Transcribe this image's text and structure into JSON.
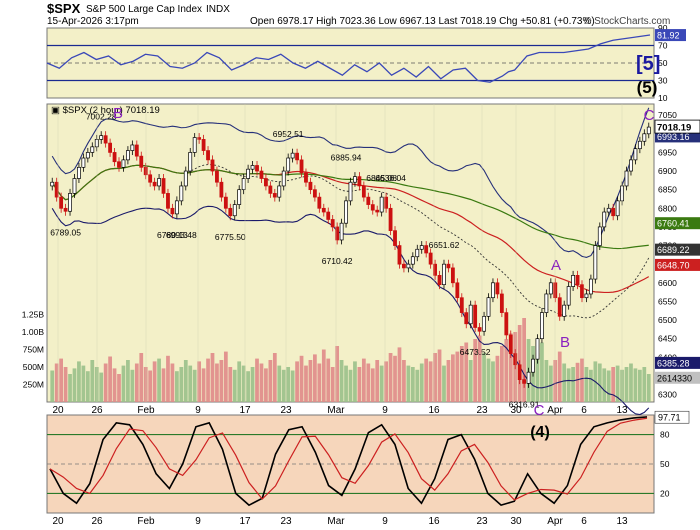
{
  "header": {
    "symbol": "$SPX",
    "name": "S&P 500 Large Cap Index",
    "exchange": "INDX",
    "datetime": "15-Apr-2026 3:17pm",
    "quote": "Open 6978.17  High 7023.36  Low 6967.13  Last 7018.19  Chg +50.81 (+0.73%)",
    "copyright": "© StockCharts.com"
  },
  "colors": {
    "panel_bg": "#f3f0c8",
    "stoch_bg": "#f6d6bb",
    "rsi_line": "#3a48b8",
    "rsi_band": "#1a2a90",
    "upper_band": "#26307a",
    "ma_red": "#cc2020",
    "ma_green": "#3a7a10",
    "lower_band": "#1a1a6a",
    "up_bar": "#000000",
    "down_bar": "#cc1111",
    "vol_red": "#e08a88",
    "vol_green": "#9ac08a",
    "label_blue": "#1a1aa0",
    "label_purple": "#8a20c0",
    "stoch_black": "#000000",
    "stoch_red": "#cc2020"
  },
  "chart_data": [
    {
      "type": "line",
      "panel": "rsi",
      "ylim": [
        10,
        90
      ],
      "ticks": [
        "90",
        "70",
        "50",
        "30",
        "10"
      ],
      "last_label": "81.92",
      "wave_label": "[5]",
      "x": [
        0,
        4,
        8,
        12,
        16,
        20,
        24,
        28,
        32,
        36,
        40,
        44,
        48,
        52,
        56,
        60,
        64,
        68,
        72,
        76,
        80,
        84,
        88,
        92,
        96,
        100,
        104,
        108,
        112,
        116,
        120,
        124,
        128,
        132,
        136,
        140,
        144,
        148,
        150,
        152,
        156,
        160,
        164,
        168,
        172,
        176,
        180,
        184,
        188,
        192,
        196
      ],
      "values": [
        50,
        44,
        56,
        62,
        54,
        58,
        48,
        52,
        60,
        58,
        46,
        44,
        50,
        62,
        56,
        42,
        48,
        56,
        54,
        60,
        50,
        44,
        52,
        44,
        36,
        48,
        40,
        50,
        36,
        44,
        34,
        46,
        32,
        42,
        44,
        30,
        28,
        35,
        40,
        42,
        58,
        62,
        62,
        62,
        64,
        66,
        72,
        76,
        78,
        80,
        82
      ]
    },
    {
      "type": "candlestick",
      "panel": "price",
      "series_label": "$SPX (2 hour) 7018.19",
      "ylim": [
        6280,
        7080
      ],
      "ticks": [
        "7050",
        "6950",
        "6900",
        "6850",
        "6800",
        "6750",
        "6700",
        "6650",
        "6600",
        "6550",
        "6500",
        "6450",
        "6400",
        "6350",
        "6300"
      ],
      "volume_ticks": [
        "1.25B",
        "1.00B",
        "750M",
        "500M",
        "250M"
      ],
      "x_labels": [
        "20",
        "26",
        "Feb",
        "9",
        "17",
        "23",
        "Mar",
        "9",
        "16",
        "23",
        "30",
        "Apr",
        "6",
        "13"
      ],
      "right_labels": {
        "upper_band": "6993.16",
        "ma_green": "6760.41",
        "lower_dotted": "6689.22",
        "ma_red": "6648.70",
        "lower_band": "6385.28",
        "volume": "2614330"
      },
      "last_price": "7018.19",
      "annotations": [
        {
          "text": "7002.28",
          "idx": 11
        },
        {
          "text": "6993.48",
          "idx": 29
        },
        {
          "text": "6952.51",
          "idx": 53
        },
        {
          "text": "6885.94",
          "idx": 66
        },
        {
          "text": "6845.08",
          "idx": 74
        },
        {
          "text": "6789.05",
          "idx": 3
        },
        {
          "text": "6780.13",
          "idx": 27
        },
        {
          "text": "6775.50",
          "idx": 40
        },
        {
          "text": "6710.42",
          "idx": 64
        },
        {
          "text": "6636.04",
          "idx": 76
        },
        {
          "text": "6651.62",
          "idx": 88
        },
        {
          "text": "6473.52",
          "idx": 95
        },
        {
          "text": "6316.91",
          "idx": 106
        }
      ],
      "wave_labels": [
        "B",
        "(5)",
        "C",
        "A",
        "B",
        "C"
      ],
      "closes": [
        6870,
        6830,
        6800,
        6792,
        6840,
        6880,
        6910,
        6935,
        6950,
        6965,
        6985,
        6995,
        6975,
        6950,
        6925,
        6910,
        6930,
        6955,
        6970,
        6940,
        6910,
        6890,
        6870,
        6860,
        6880,
        6840,
        6800,
        6785,
        6820,
        6860,
        6900,
        6950,
        6990,
        6985,
        6955,
        6930,
        6900,
        6870,
        6830,
        6800,
        6780,
        6810,
        6850,
        6880,
        6905,
        6915,
        6900,
        6880,
        6860,
        6840,
        6830,
        6860,
        6900,
        6935,
        6948,
        6930,
        6895,
        6870,
        6850,
        6830,
        6800,
        6790,
        6770,
        6750,
        6715,
        6760,
        6820,
        6870,
        6885,
        6860,
        6830,
        6810,
        6795,
        6790,
        6830,
        6800,
        6740,
        6700,
        6650,
        6640,
        6650,
        6670,
        6690,
        6700,
        6680,
        6650,
        6620,
        6595,
        6650,
        6640,
        6600,
        6560,
        6520,
        6490,
        6540,
        6480,
        6470,
        6510,
        6560,
        6600,
        6570,
        6520,
        6460,
        6410,
        6380,
        6340,
        6330,
        6360,
        6395,
        6450,
        6520,
        6570,
        6600,
        6560,
        6510,
        6540,
        6590,
        6620,
        6595,
        6560,
        6570,
        6610,
        6700,
        6750,
        6790,
        6800,
        6780,
        6820,
        6860,
        6900,
        6930,
        6960,
        6980,
        7000,
        7018
      ],
      "volumes": [
        0.45,
        0.55,
        0.62,
        0.5,
        0.4,
        0.48,
        0.58,
        0.52,
        0.44,
        0.6,
        0.5,
        0.42,
        0.55,
        0.65,
        0.48,
        0.4,
        0.52,
        0.6,
        0.46,
        0.55,
        0.7,
        0.5,
        0.45,
        0.58,
        0.62,
        0.48,
        0.66,
        0.55,
        0.44,
        0.5,
        0.6,
        0.52,
        0.46,
        0.58,
        0.48,
        0.62,
        0.7,
        0.55,
        0.6,
        0.72,
        0.5,
        0.46,
        0.58,
        0.52,
        0.44,
        0.5,
        0.62,
        0.55,
        0.48,
        0.6,
        0.7,
        0.52,
        0.46,
        0.5,
        0.45,
        0.58,
        0.66,
        0.52,
        0.6,
        0.68,
        0.55,
        0.75,
        0.62,
        0.5,
        0.8,
        0.6,
        0.52,
        0.46,
        0.58,
        0.5,
        0.62,
        0.55,
        0.48,
        0.6,
        0.52,
        0.58,
        0.7,
        0.66,
        0.78,
        0.6,
        0.52,
        0.5,
        0.46,
        0.55,
        0.62,
        0.58,
        0.7,
        0.75,
        0.52,
        0.6,
        0.68,
        0.72,
        0.8,
        0.85,
        0.6,
        0.9,
        0.95,
        0.7,
        0.62,
        0.58,
        0.66,
        0.8,
        0.9,
        0.98,
        1.0,
        1.1,
        1.2,
        0.9,
        0.8,
        0.7,
        0.85,
        0.6,
        0.52,
        0.6,
        0.72,
        0.55,
        0.48,
        0.5,
        0.56,
        0.62,
        0.5,
        0.46,
        0.58,
        0.55,
        0.48,
        0.45,
        0.5,
        0.52,
        0.46,
        0.5,
        0.55,
        0.48,
        0.46,
        0.5,
        0.4
      ]
    },
    {
      "type": "line",
      "panel": "stochastic",
      "ylim": [
        0,
        100
      ],
      "ticks": [
        "80",
        "50",
        "20"
      ],
      "last_label": "97.71",
      "wave_label": "(4)",
      "x_labels": [
        "20",
        "26",
        "Feb",
        "9",
        "17",
        "23",
        "Mar",
        "9",
        "16",
        "23",
        "30",
        "Apr",
        "6",
        "13"
      ],
      "x": [
        0,
        3,
        6,
        9,
        12,
        15,
        18,
        21,
        24,
        27,
        30,
        33,
        36,
        39,
        42,
        45,
        48,
        51,
        54,
        57,
        60,
        63,
        66,
        69,
        72,
        75,
        78,
        81,
        84,
        87,
        90,
        93,
        96,
        99,
        102,
        105,
        108,
        111,
        114,
        117,
        120,
        123,
        126,
        129,
        132,
        135
      ],
      "values": [
        45,
        20,
        10,
        30,
        75,
        92,
        90,
        70,
        40,
        25,
        50,
        88,
        92,
        65,
        20,
        8,
        15,
        60,
        85,
        88,
        62,
        28,
        18,
        45,
        82,
        90,
        70,
        25,
        10,
        35,
        75,
        80,
        55,
        20,
        8,
        12,
        40,
        20,
        10,
        28,
        70,
        88,
        92,
        95,
        97,
        98
      ]
    }
  ]
}
